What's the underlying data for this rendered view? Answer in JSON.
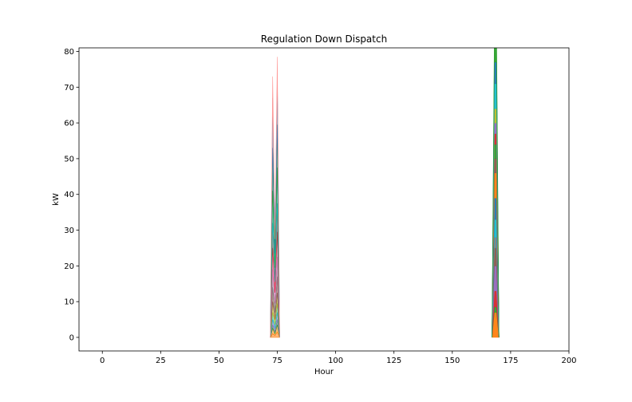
{
  "chart_data": {
    "type": "area",
    "title": "Regulation Down Dispatch",
    "xlabel": "Hour",
    "ylabel": "kW",
    "xlim": [
      -10,
      200
    ],
    "ylim": [
      -3.8,
      81
    ],
    "x_ticks": [
      0,
      25,
      50,
      75,
      100,
      125,
      150,
      175,
      200
    ],
    "y_ticks": [
      0,
      10,
      20,
      30,
      40,
      50,
      60,
      70,
      80
    ],
    "grid": false,
    "legend": "none",
    "colors": [
      "#1f77b4",
      "#ff7f0e",
      "#2ca02c",
      "#d62728",
      "#9467bd",
      "#8c564b",
      "#e377c2",
      "#7f7f7f",
      "#bcbd22",
      "#17becf"
    ],
    "spikes": [
      {
        "hours": [
          72,
          73,
          74,
          75,
          76
        ],
        "layers": [
          {
            "values": [
              0,
              1.0,
              0.5,
              1.5,
              0
            ],
            "color": "#ff7f0e"
          },
          {
            "values": [
              0,
              1.5,
              0.5,
              2.0,
              0
            ],
            "color": "#ff7f0e"
          },
          {
            "values": [
              0,
              1.0,
              0.5,
              1.5,
              0
            ],
            "color": "#2ca02c"
          },
          {
            "values": [
              0,
              1.5,
              1.0,
              2.0,
              0
            ],
            "color": "#9467bd"
          },
          {
            "values": [
              0,
              2.0,
              1.0,
              2.5,
              0
            ],
            "color": "#17becf"
          },
          {
            "values": [
              0,
              3.0,
              1.5,
              3.0,
              0
            ],
            "color": "#bcbd22"
          },
          {
            "values": [
              0,
              4.0,
              2.0,
              4.5,
              0
            ],
            "color": "#8c564b"
          },
          {
            "values": [
              0,
              5.0,
              2.5,
              5.5,
              0
            ],
            "color": "#7f7f7f"
          },
          {
            "values": [
              0,
              6.0,
              3.0,
              7.0,
              0
            ],
            "color": "#e377c2"
          },
          {
            "values": [
              0,
              7.0,
              3.0,
              8.0,
              0
            ],
            "color": "#d62728"
          },
          {
            "values": [
              0,
              9.0,
              4.0,
              10.0,
              0
            ],
            "color": "#17becf"
          },
          {
            "values": [
              0,
              12.0,
              4.0,
              12.0,
              0
            ],
            "color": "#2ca02c"
          },
          {
            "values": [
              0,
              14.0,
              4.0,
              14.0,
              0
            ],
            "color": "#1f77b4"
          },
          {
            "values": [
              0,
              6.0,
              1.0,
              5.0,
              0
            ],
            "color": "#ff9896"
          }
        ]
      },
      {
        "hours": [
          167,
          168,
          169,
          170
        ],
        "layers": [
          {
            "values": [
              0,
              7.0,
              7.0,
              0
            ],
            "color": "#ff7f0e"
          },
          {
            "values": [
              0,
              1.5,
              1.5,
              0
            ],
            "color": "#2ca02c"
          },
          {
            "values": [
              0,
              4.5,
              4.5,
              0
            ],
            "color": "#d62728"
          },
          {
            "values": [
              0,
              7.0,
              7.0,
              0
            ],
            "color": "#9467bd"
          },
          {
            "values": [
              0,
              5.0,
              5.0,
              0
            ],
            "color": "#8c564b"
          },
          {
            "values": [
              0,
              3.0,
              3.0,
              0
            ],
            "color": "#7f7f7f"
          },
          {
            "values": [
              0,
              5.0,
              5.0,
              0
            ],
            "color": "#17becf"
          },
          {
            "values": [
              0,
              6.0,
              6.0,
              0
            ],
            "color": "#1f77b4"
          },
          {
            "values": [
              0,
              7.0,
              7.0,
              0
            ],
            "color": "#ff7f0e"
          },
          {
            "values": [
              0,
              4.0,
              4.0,
              0
            ],
            "color": "#8c564b"
          },
          {
            "values": [
              0,
              4.0,
              4.0,
              0
            ],
            "color": "#2ca02c"
          },
          {
            "values": [
              0,
              3.0,
              3.0,
              0
            ],
            "color": "#d62728"
          },
          {
            "values": [
              0,
              3.0,
              3.0,
              0
            ],
            "color": "#9467bd"
          },
          {
            "values": [
              0,
              4.0,
              4.0,
              0
            ],
            "color": "#bcbd22"
          },
          {
            "values": [
              0,
              7.0,
              7.0,
              0
            ],
            "color": "#17becf"
          },
          {
            "values": [
              0,
              6.0,
              6.0,
              0
            ],
            "color": "#1f77b4"
          },
          {
            "values": [
              0,
              6.0,
              6.0,
              0
            ],
            "color": "#2ca02c"
          }
        ]
      }
    ]
  }
}
